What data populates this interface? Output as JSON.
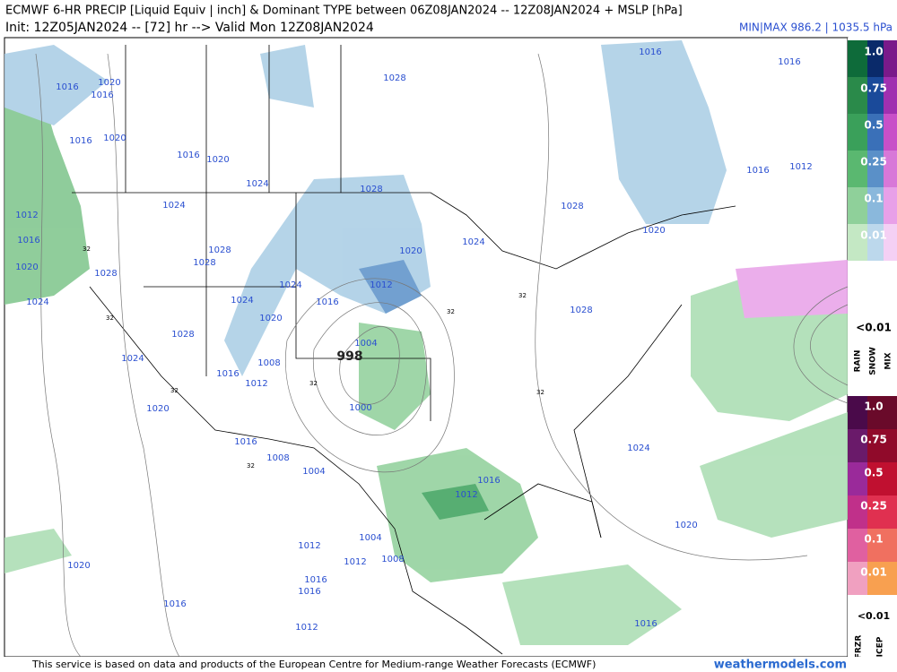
{
  "header": {
    "title": "ECMWF 6-HR PRECIP [Liquid Equiv | inch] & Dominant TYPE between 06Z08JAN2024 -- 12Z08JAN2024 + MSLP [hPa]",
    "subtitle": "Init: 12Z05JAN2024 -- [72] hr --> Valid Mon 12Z08JAN2024",
    "minmax": "MIN|MAX 986.2 | 1035.5 hPa"
  },
  "map": {
    "low_label": "998",
    "isobar_labels": [
      "1016",
      "1016",
      "1016",
      "1020",
      "1016",
      "1020",
      "1016",
      "1016",
      "1020",
      "1028",
      "1024",
      "1028",
      "1024",
      "1028",
      "1012",
      "1016",
      "1020",
      "1024",
      "1020",
      "1028",
      "1028",
      "1020",
      "1028",
      "1012",
      "1024",
      "1024",
      "1016",
      "1024",
      "1028",
      "1020",
      "1004",
      "1028",
      "1024",
      "1008",
      "1016",
      "1012",
      "1000",
      "1020",
      "1016",
      "1008",
      "1004",
      "1024",
      "1016",
      "1012",
      "1020",
      "1004",
      "1012",
      "1012",
      "1008",
      "1020",
      "1016",
      "1016",
      "1016",
      "1012",
      "1016",
      "1016",
      "1012"
    ],
    "freezing_labels": [
      "32",
      "32",
      "32",
      "32",
      "32",
      "32",
      "32",
      "32"
    ]
  },
  "legend": {
    "rain_snow_mix": {
      "levels": [
        "1.0",
        "0.75",
        "0.5",
        "0.25",
        "0.1",
        "0.01"
      ],
      "below": "<0.01",
      "types": [
        "RAIN",
        "SNOW",
        "MIX"
      ]
    },
    "frzr_icep": {
      "levels": [
        "1.0",
        "0.75",
        "0.5",
        "0.25",
        "0.1",
        "0.01"
      ],
      "below": "<0.01",
      "types": [
        "FRZR",
        "ICEP"
      ]
    }
  },
  "footer": {
    "credit": "This service is based on data and products of the European Centre for Medium-range Weather Forecasts (ECMWF)",
    "site": "weathermodels.com"
  }
}
